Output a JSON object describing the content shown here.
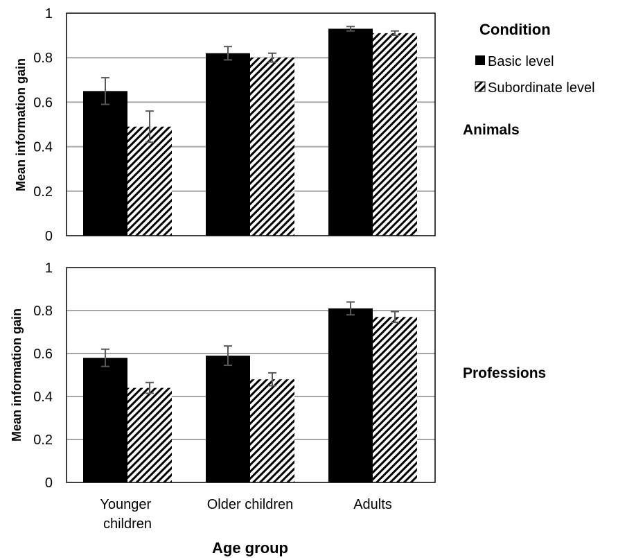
{
  "chart_data": [
    {
      "type": "bar",
      "panel_label": "Animals",
      "ylabel": "Mean information gain",
      "ylim": [
        0,
        1
      ],
      "yticks": [
        "0",
        "0.2",
        "0.4",
        "0.6",
        "0.8",
        "1"
      ],
      "grid": true,
      "categories": [
        "Younger children",
        "Older children",
        "Adults"
      ],
      "series": [
        {
          "name": "Basic level",
          "values": [
            0.65,
            0.82,
            0.93
          ],
          "errors": [
            0.06,
            0.03,
            0.01
          ]
        },
        {
          "name": "Subordinate level",
          "values": [
            0.49,
            0.8,
            0.91
          ],
          "errors": [
            0.07,
            0.02,
            0.01
          ]
        }
      ]
    },
    {
      "type": "bar",
      "panel_label": "Professions",
      "ylabel": "Mean information gain",
      "ylim": [
        0,
        1
      ],
      "yticks": [
        "0",
        "0.2",
        "0.4",
        "0.6",
        "0.8",
        "1"
      ],
      "grid": true,
      "xlabel": "Age group",
      "categories": [
        "Younger children",
        "Older children",
        "Adults"
      ],
      "series": [
        {
          "name": "Basic level",
          "values": [
            0.58,
            0.59,
            0.81
          ],
          "errors": [
            0.04,
            0.045,
            0.03
          ]
        },
        {
          "name": "Subordinate level",
          "values": [
            0.44,
            0.48,
            0.77
          ],
          "errors": [
            0.025,
            0.03,
            0.025
          ]
        }
      ]
    }
  ],
  "legend": {
    "title": "Condition",
    "position": "top-right",
    "items": [
      {
        "label": "Basic level",
        "fill": "solid"
      },
      {
        "label": "Subordinate level",
        "fill": "hatched"
      }
    ]
  },
  "colors": {
    "basic": "#000000",
    "hatch": "#000000",
    "grid": "#a6a6a6",
    "error_bar": "#595959"
  }
}
